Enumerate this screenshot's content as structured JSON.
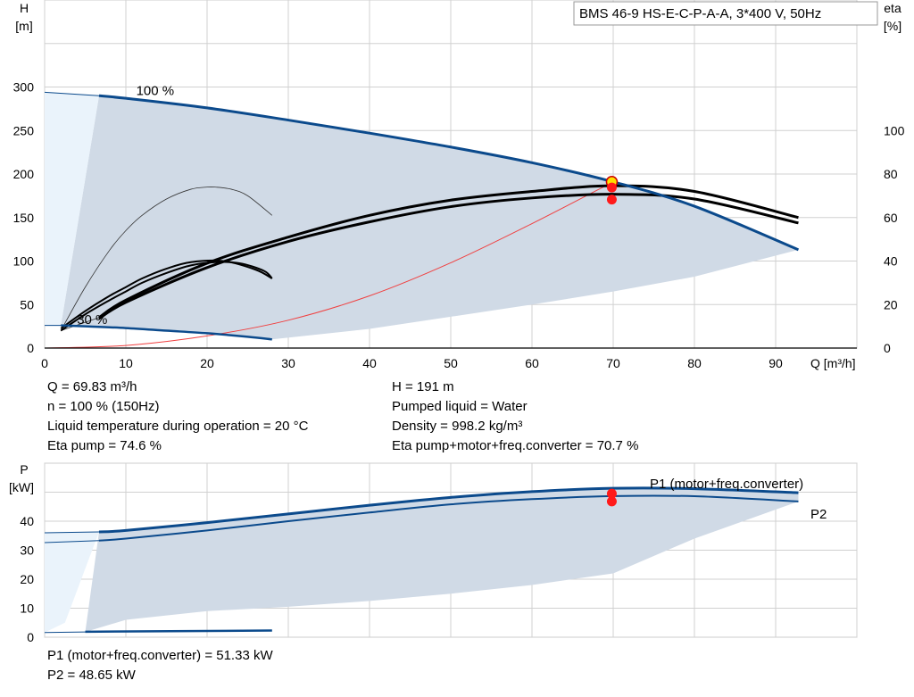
{
  "model_label": "BMS 46-9 HS-E-C-P-A-A, 3*400 V, 50Hz",
  "colors": {
    "curve_blue": "#0b4a8c",
    "area_fill": "#d0dae6",
    "light_fill": "#eaf3fb",
    "grid": "#d0d0d0",
    "system_curve": "#f04040",
    "dot_red": "#ff1a1a",
    "dot_yellow": "#ffe000"
  },
  "info_top": {
    "left": [
      "Q = 69.83 m³/h",
      "n = 100 % (150Hz)",
      "Liquid temperature during operation = 20 °C",
      "Eta pump = 74.6 %"
    ],
    "right": [
      "H = 191 m",
      "Pumped liquid = Water",
      "Density = 998.2 kg/m³",
      "Eta pump+motor+freq.converter = 70.7 %"
    ]
  },
  "info_bottom": [
    "P1 (motor+freq.converter) = 51.33 kW",
    "P2 = 48.65 kW"
  ],
  "chart_data": [
    {
      "type": "line",
      "name": "pump-curve",
      "xlabel": "Q [m³/h]",
      "ylabel": "H\n[m]",
      "ylabel_right": "eta\n[%]",
      "xlim": [
        0,
        100
      ],
      "ylim": [
        0,
        400
      ],
      "y2lim": [
        0,
        160
      ],
      "xticks": [
        0,
        10,
        20,
        30,
        40,
        50,
        60,
        70,
        80,
        90
      ],
      "yticks": [
        0,
        50,
        100,
        150,
        200,
        250,
        300
      ],
      "y2ticks": [
        0,
        20,
        40,
        60,
        80,
        100
      ],
      "speed_labels": [
        {
          "text": "100 %",
          "x": 6,
          "y": 294
        },
        {
          "text": "30 %",
          "x": 2,
          "y": 30
        }
      ],
      "series": [
        {
          "name": "",
          "role": "H-100%",
          "axis": "left",
          "x": [
            6.7,
            10,
            20,
            30,
            40,
            50,
            60,
            70,
            80,
            92.8
          ],
          "y": [
            290,
            287,
            276,
            262,
            247,
            231,
            213,
            191,
            163,
            113
          ]
        },
        {
          "name": "",
          "role": "H-30%",
          "axis": "left",
          "x": [
            2,
            5,
            10,
            15,
            20,
            25,
            28
          ],
          "y": [
            26,
            25,
            23,
            20,
            17,
            13,
            10
          ]
        },
        {
          "name": "",
          "role": "eta-pump",
          "axis": "right",
          "x": [
            6.7,
            10,
            20,
            30,
            40,
            50,
            60,
            70,
            80,
            92.8
          ],
          "y": [
            14,
            22,
            39,
            51,
            61,
            68,
            72,
            74.6,
            72,
            60
          ]
        },
        {
          "name": "",
          "role": "eta-total",
          "axis": "right",
          "x": [
            6.7,
            10,
            20,
            30,
            40,
            50,
            60,
            70,
            80,
            92.8
          ],
          "y": [
            13.5,
            21,
            37,
            49,
            58,
            65,
            69,
            70.7,
            68.5,
            57.5
          ]
        },
        {
          "name": "",
          "role": "eta-pump-30%",
          "axis": "right",
          "x": [
            2,
            5,
            8,
            10,
            12,
            15,
            18,
            22,
            26,
            28
          ],
          "y": [
            9,
            17,
            24,
            28,
            32,
            36.5,
            39.5,
            40,
            36,
            32
          ]
        },
        {
          "name": "",
          "role": "eta-total-30%",
          "axis": "right",
          "x": [
            2,
            5,
            8,
            10,
            12,
            15,
            18,
            21,
            24,
            27,
            28
          ],
          "y": [
            8,
            15.5,
            22,
            26,
            30,
            34.5,
            38,
            39.5,
            39,
            35.5,
            32
          ]
        },
        {
          "name": "",
          "role": "eta-thin-upper",
          "axis": "right",
          "x": [
            2,
            5,
            8,
            10,
            12,
            15,
            18,
            20,
            21,
            23,
            25,
            28
          ],
          "y": [
            8,
            28,
            45,
            54,
            61,
            68.5,
            73,
            74,
            74,
            73,
            70,
            61
          ]
        },
        {
          "name": "",
          "role": "system-curve",
          "axis": "left",
          "x": [
            0,
            10,
            20,
            30,
            40,
            50,
            60,
            70
          ],
          "y": [
            0,
            3,
            14,
            32,
            60,
            98,
            143,
            191
          ]
        }
      ],
      "duty_point": {
        "x": 69.83,
        "H": 191,
        "eta_pump": 74.6,
        "eta_total": 70.7
      }
    },
    {
      "type": "line",
      "name": "power-curve",
      "xlabel": "",
      "ylabel": "P\n[kW]",
      "xlim": [
        0,
        100
      ],
      "ylim": [
        0,
        60
      ],
      "yticks": [
        0,
        10,
        20,
        30,
        40
      ],
      "series": [
        {
          "name": "P1 (motor+freq.converter)",
          "role": "P1-100%",
          "x": [
            6.7,
            10,
            20,
            30,
            40,
            50,
            60,
            70,
            80,
            92.8
          ],
          "y": [
            36.3,
            36.8,
            39.5,
            42.5,
            45.5,
            48.2,
            50.2,
            51.33,
            51.2,
            49.8
          ]
        },
        {
          "name": "P2",
          "role": "P2-100%",
          "x": [
            6.7,
            10,
            20,
            30,
            40,
            50,
            60,
            70,
            80,
            92.8
          ],
          "y": [
            33.3,
            34,
            36.8,
            40,
            43,
            45.8,
            47.6,
            48.65,
            48.6,
            46.8
          ]
        },
        {
          "name": "",
          "role": "P1-30%",
          "x": [
            5,
            28
          ],
          "y": [
            1.9,
            2.3
          ]
        },
        {
          "name": "",
          "role": "P2-30%",
          "x": [
            0,
            5
          ],
          "y": [
            1.6,
            1.8
          ]
        }
      ],
      "duty_point": {
        "x": 69.83,
        "P1": 51.33,
        "P2": 48.65
      }
    }
  ]
}
